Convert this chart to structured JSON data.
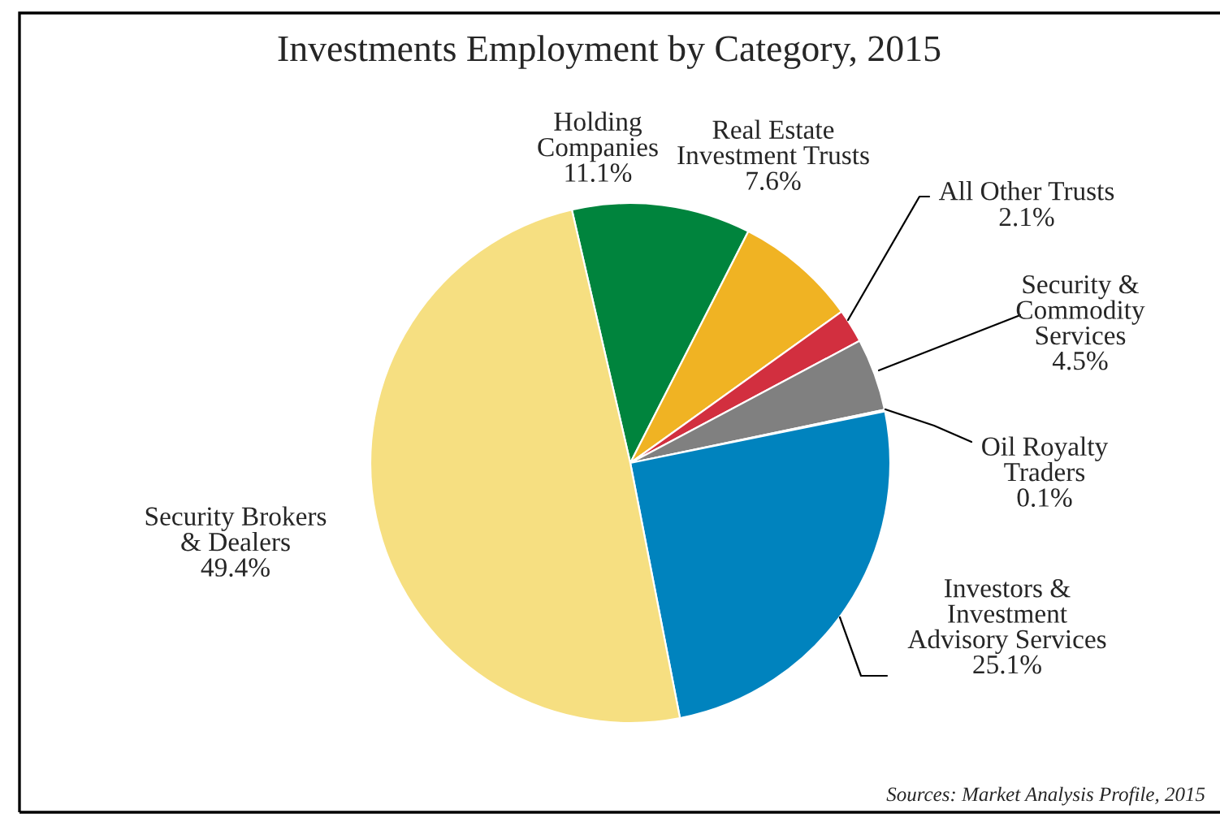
{
  "chart_data": {
    "type": "pie",
    "title": "Investments Employment by Category, 2015",
    "categories": [
      "Holding\nCompanies",
      "Real Estate\nInvestment Trusts",
      "All Other Trusts",
      "Security &\nCommodity\nServices",
      "Oil Royalty\nTraders",
      "Investors &\nInvestment\nAdvisory Services",
      "Security Brokers\n& Dealers"
    ],
    "values": [
      11.1,
      7.6,
      2.1,
      4.5,
      0.1,
      25.1,
      49.4
    ],
    "colors": [
      "#00843d",
      "#f0b323",
      "#d22f3f",
      "#808080",
      "#a8c8dc",
      "#0083be",
      "#f6df81"
    ],
    "value_labels": [
      "11.1%",
      "7.6%",
      "2.1%",
      "4.5%",
      "0.1%",
      "25.1%",
      "49.4%"
    ],
    "annotations": [
      "Sources: Market Analysis Profile, 2015"
    ]
  }
}
